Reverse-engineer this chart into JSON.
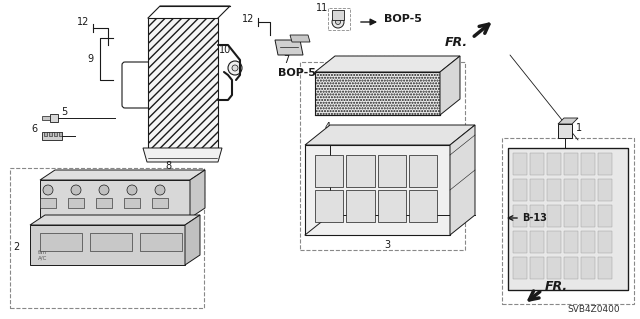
{
  "bg_color": "#ffffff",
  "line_color": "#1a1a1a",
  "dash_color": "#666666",
  "labels": {
    "bop5_1": "BOP-5",
    "bop5_2": "BOP-5",
    "b13": "B-13",
    "fr1": "FR.",
    "fr2": "FR.",
    "diagram_code": "SVB4Z0400"
  },
  "fp": 7,
  "fs": 7
}
